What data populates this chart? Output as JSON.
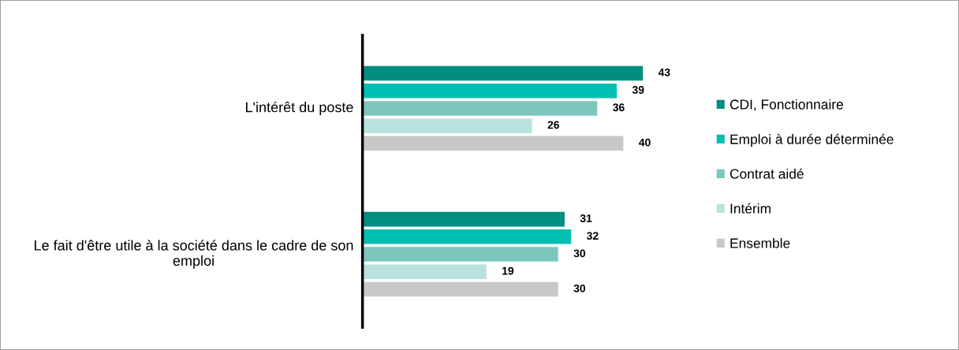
{
  "chart_data": {
    "type": "bar",
    "orientation": "horizontal",
    "categories": [
      "L'intérêt du poste",
      "Le fait d'être utile à la société dans le cadre de son emploi"
    ],
    "series": [
      {
        "name": "CDI, Fonctionnaire",
        "color": "#008e80",
        "values": [
          43,
          31
        ]
      },
      {
        "name": "Emploi à durée déterminée",
        "color": "#00bfb2",
        "values": [
          39,
          32
        ]
      },
      {
        "name": "Contrat aidé",
        "color": "#7dc6be",
        "values": [
          36,
          30
        ]
      },
      {
        "name": "Intérim",
        "color": "#b8e2de",
        "values": [
          26,
          19
        ]
      },
      {
        "name": "Ensemble",
        "color": "#c8c8c8",
        "values": [
          40,
          30
        ]
      }
    ],
    "data_labels": true,
    "legend": "right",
    "grid": false,
    "tick_labels": "y"
  }
}
